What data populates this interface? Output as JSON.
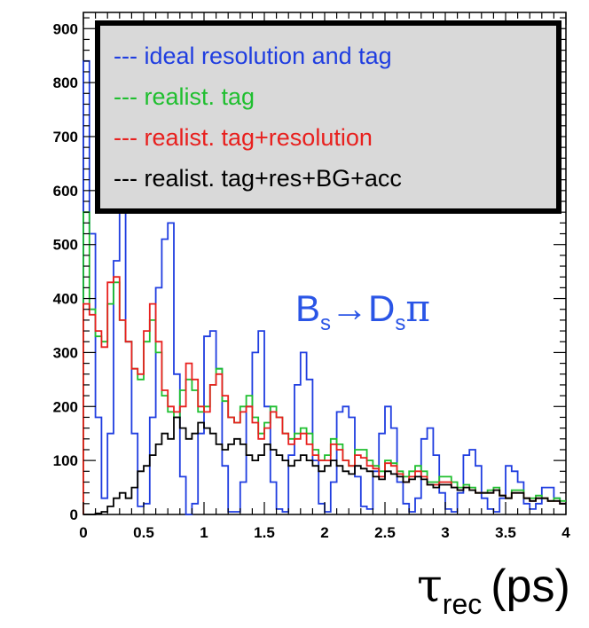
{
  "chart_data": {
    "type": "line",
    "subtype": "step-histogram",
    "title": "",
    "xlabel": "τ_rec (ps)",
    "xlabel_parts": {
      "symbol": "τ",
      "subscript": "rec",
      "unit": "(ps)"
    },
    "ylabel": "",
    "xlim": [
      0,
      4
    ],
    "ylim": [
      0,
      930
    ],
    "grid": false,
    "legend_position": "top-left",
    "annotation": {
      "parts": [
        "B",
        "s",
        "→D",
        "s",
        "π"
      ],
      "text": "Bs→Dsπ",
      "color": "#2a55e6"
    },
    "x_ticks": [
      "0",
      "0.5",
      "1",
      "1.5",
      "2",
      "2.5",
      "3",
      "3.5",
      "4"
    ],
    "y_ticks": [
      "0",
      "100",
      "200",
      "300",
      "400",
      "500",
      "600",
      "700",
      "800",
      "900"
    ],
    "bins": {
      "start": 0,
      "width": 0.05,
      "count": 80
    },
    "series": [
      {
        "name": "ideal resolution and tag",
        "legend_label": "--- ideal resolution and tag",
        "color": "#1f3de0",
        "values": [
          840,
          520,
          180,
          30,
          150,
          470,
          570,
          320,
          150,
          15,
          20,
          180,
          420,
          510,
          540,
          260,
          70,
          0,
          20,
          150,
          330,
          340,
          270,
          90,
          5,
          5,
          60,
          200,
          300,
          340,
          200,
          60,
          10,
          5,
          110,
          240,
          300,
          250,
          100,
          20,
          5,
          60,
          190,
          200,
          180,
          70,
          15,
          10,
          80,
          150,
          200,
          160,
          60,
          20,
          5,
          30,
          140,
          160,
          110,
          40,
          10,
          5,
          40,
          110,
          120,
          90,
          30,
          10,
          5,
          30,
          90,
          80,
          60,
          20,
          10,
          20,
          50,
          50,
          30,
          20
        ]
      },
      {
        "name": "realist. tag",
        "legend_label": "--- realist. tag",
        "color": "#1fbf2f",
        "values": [
          560,
          380,
          330,
          320,
          390,
          430,
          360,
          320,
          270,
          250,
          320,
          360,
          300,
          220,
          190,
          180,
          230,
          250,
          230,
          190,
          200,
          240,
          270,
          210,
          180,
          170,
          200,
          220,
          180,
          150,
          170,
          200,
          180,
          150,
          140,
          150,
          160,
          150,
          120,
          100,
          110,
          140,
          130,
          100,
          90,
          120,
          120,
          100,
          90,
          80,
          100,
          95,
          80,
          70,
          80,
          90,
          80,
          60,
          60,
          70,
          70,
          60,
          50,
          55,
          50,
          40,
          40,
          45,
          50,
          35,
          30,
          45,
          45,
          30,
          30,
          35,
          30,
          25,
          30,
          25
        ]
      },
      {
        "name": "realist. tag+resolution",
        "legend_label": "--- realist. tag+resolution",
        "color": "#e8201e",
        "values": [
          390,
          370,
          340,
          310,
          430,
          440,
          360,
          320,
          270,
          260,
          340,
          390,
          320,
          230,
          200,
          190,
          200,
          280,
          250,
          200,
          190,
          240,
          260,
          220,
          180,
          170,
          190,
          200,
          170,
          140,
          160,
          190,
          180,
          150,
          130,
          140,
          150,
          130,
          110,
          100,
          100,
          130,
          120,
          100,
          90,
          110,
          105,
          90,
          85,
          70,
          95,
          90,
          75,
          60,
          70,
          80,
          70,
          55,
          55,
          60,
          60,
          50,
          45,
          50,
          45,
          40,
          40,
          40,
          45,
          35,
          30,
          40,
          40,
          30,
          25,
          30,
          30,
          25,
          25,
          20
        ]
      },
      {
        "name": "realist. tag+res+BG+acc",
        "legend_label": "--- realist. tag+res+BG+acc",
        "color": "#000000",
        "values": [
          0,
          0,
          2,
          5,
          15,
          30,
          40,
          30,
          50,
          80,
          90,
          110,
          130,
          150,
          140,
          180,
          160,
          140,
          150,
          170,
          160,
          150,
          130,
          120,
          130,
          140,
          130,
          110,
          100,
          110,
          130,
          120,
          110,
          100,
          90,
          100,
          110,
          100,
          90,
          80,
          90,
          100,
          90,
          80,
          75,
          90,
          85,
          80,
          70,
          65,
          80,
          75,
          70,
          60,
          65,
          70,
          65,
          55,
          50,
          55,
          55,
          50,
          45,
          50,
          45,
          40,
          40,
          40,
          45,
          35,
          30,
          40,
          40,
          30,
          25,
          30,
          30,
          25,
          25,
          20
        ]
      }
    ]
  }
}
